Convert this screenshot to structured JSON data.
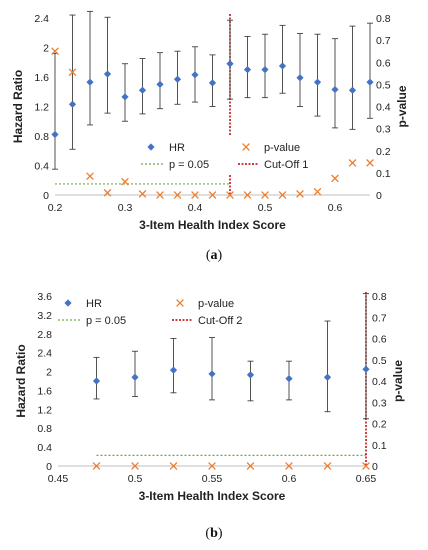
{
  "figure": {
    "caption_a": "a",
    "caption_b": "b"
  },
  "chart_data": [
    {
      "type": "scatter",
      "panel": "a",
      "xlabel": "3-Item Health Index Score",
      "ylabel": "Hazard Ratio",
      "y2label": "p-value",
      "xlim": [
        0.2,
        0.65
      ],
      "ylim": [
        0,
        2.4
      ],
      "y2lim": [
        0,
        0.8
      ],
      "xticks": [
        "0.2",
        "0.3",
        "0.4",
        "0.5",
        "0.6"
      ],
      "yticks": [
        "0",
        "0.4",
        "0.8",
        "1.2",
        "1.6",
        "2",
        "2.4"
      ],
      "y2ticks": [
        "0",
        "0.1",
        "0.2",
        "0.3",
        "0.4",
        "0.5",
        "0.6",
        "0.7",
        "0.8"
      ],
      "legend_position": "inside-bottom-center",
      "legend": [
        "HR",
        "p-value",
        "p = 0.05",
        "Cut-Off 1"
      ],
      "cutoff": 0.45,
      "p_threshold": 0.05,
      "series": [
        {
          "name": "HR",
          "axis": "left",
          "color": "#4472c4",
          "marker": "diamond",
          "x": [
            0.2,
            0.225,
            0.25,
            0.275,
            0.3,
            0.325,
            0.35,
            0.375,
            0.4,
            0.425,
            0.45,
            0.475,
            0.5,
            0.525,
            0.55,
            0.575,
            0.6,
            0.625,
            0.65
          ],
          "y": [
            0.82,
            1.23,
            1.53,
            1.64,
            1.33,
            1.42,
            1.5,
            1.57,
            1.63,
            1.52,
            1.78,
            1.7,
            1.7,
            1.75,
            1.59,
            1.53,
            1.43,
            1.42,
            1.53
          ],
          "lower": [
            0.35,
            0.62,
            0.95,
            1.11,
            1.0,
            1.1,
            1.17,
            1.23,
            1.26,
            1.2,
            1.3,
            1.32,
            1.32,
            1.38,
            1.2,
            1.07,
            0.91,
            0.89,
            1.04
          ],
          "upper": [
            1.92,
            2.44,
            2.49,
            2.41,
            1.78,
            1.85,
            1.93,
            1.95,
            2.01,
            1.9,
            2.37,
            2.15,
            2.18,
            2.3,
            2.19,
            2.18,
            2.12,
            2.29,
            2.33
          ]
        },
        {
          "name": "p-value",
          "axis": "right",
          "color": "#ed7d31",
          "marker": "x",
          "x": [
            0.2,
            0.225,
            0.25,
            0.275,
            0.3,
            0.325,
            0.35,
            0.375,
            0.4,
            0.425,
            0.45,
            0.475,
            0.5,
            0.525,
            0.55,
            0.575,
            0.6,
            0.625,
            0.65
          ],
          "y": [
            0.65,
            0.555,
            0.085,
            0.01,
            0.06,
            0.005,
            0.0,
            0.0,
            0.0,
            0.0,
            0.0,
            0.0,
            0.0,
            0.0,
            0.005,
            0.015,
            0.075,
            0.145,
            0.145
          ]
        }
      ]
    },
    {
      "type": "scatter",
      "panel": "b",
      "xlabel": "3-Item Health Index Score",
      "ylabel": "Hazard Ratio",
      "y2label": "p-value",
      "xlim": [
        0.45,
        0.65
      ],
      "ylim": [
        0,
        3.6
      ],
      "y2lim": [
        0,
        0.8
      ],
      "xticks": [
        "0.45",
        "0.5",
        "0.55",
        "0.6",
        "0.65"
      ],
      "yticks": [
        "0",
        "0.4",
        "0.8",
        "1.2",
        "1.6",
        "2",
        "2.4",
        "2.8",
        "3.2",
        "3.6"
      ],
      "y2ticks": [
        "0",
        "0.1",
        "0.2",
        "0.3",
        "0.4",
        "0.5",
        "0.6",
        "0.7",
        "0.8"
      ],
      "legend_position": "top",
      "legend": [
        "HR",
        "p-value",
        "p = 0.05",
        "Cut-Off 2"
      ],
      "cutoff": 0.65,
      "p_threshold": 0.05,
      "series": [
        {
          "name": "HR",
          "axis": "left",
          "color": "#4472c4",
          "marker": "diamond",
          "x": [
            0.475,
            0.5,
            0.525,
            0.55,
            0.575,
            0.6,
            0.625,
            0.65
          ],
          "y": [
            1.8,
            1.88,
            2.03,
            1.95,
            1.93,
            1.85,
            1.88,
            2.05
          ],
          "lower": [
            1.42,
            1.47,
            1.55,
            1.4,
            1.38,
            1.4,
            1.15,
            1.0
          ],
          "upper": [
            2.3,
            2.43,
            2.7,
            2.72,
            2.22,
            2.22,
            3.07,
            3.65
          ]
        },
        {
          "name": "p-value",
          "axis": "right",
          "color": "#ed7d31",
          "marker": "x",
          "x": [
            0.475,
            0.5,
            0.525,
            0.55,
            0.575,
            0.6,
            0.625,
            0.65
          ],
          "y": [
            0,
            0,
            0,
            0,
            0,
            0,
            0,
            0
          ]
        }
      ]
    }
  ]
}
